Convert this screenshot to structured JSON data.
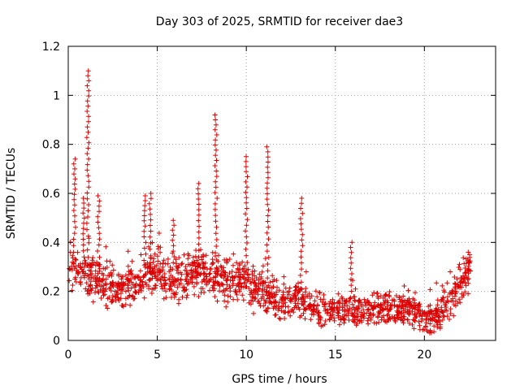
{
  "chart_data": {
    "type": "scatter",
    "title": "Day 303 of 2025, SRMTID for receiver dae3",
    "xlabel": "GPS time / hours",
    "ylabel": "SRMTID / TECUs",
    "xlim": [
      0,
      24
    ],
    "ylim": [
      0,
      1.2
    ],
    "x_ticks": [
      0,
      5,
      10,
      15,
      20
    ],
    "y_ticks": [
      0,
      0.2,
      0.4,
      0.6,
      0.8,
      1,
      1.2
    ],
    "x_tick_labels": [
      "0",
      "5",
      "10",
      "15",
      "20"
    ],
    "y_tick_labels": [
      "0",
      "0.2",
      "0.4",
      "0.6",
      "0.8",
      "1",
      "1.2"
    ],
    "grid": true,
    "marker": "plus",
    "color": "#dd0000",
    "data_end_hours": 22.6,
    "trend": [
      [
        0.0,
        0.28
      ],
      [
        0.5,
        0.3
      ],
      [
        1.0,
        0.27
      ],
      [
        1.5,
        0.25
      ],
      [
        2.0,
        0.24
      ],
      [
        2.5,
        0.21
      ],
      [
        3.0,
        0.21
      ],
      [
        3.5,
        0.21
      ],
      [
        4.0,
        0.24
      ],
      [
        4.5,
        0.28
      ],
      [
        5.0,
        0.28
      ],
      [
        5.5,
        0.25
      ],
      [
        6.0,
        0.26
      ],
      [
        6.5,
        0.24
      ],
      [
        7.0,
        0.28
      ],
      [
        7.5,
        0.27
      ],
      [
        8.0,
        0.27
      ],
      [
        8.5,
        0.25
      ],
      [
        9.0,
        0.24
      ],
      [
        9.5,
        0.24
      ],
      [
        10.0,
        0.25
      ],
      [
        10.5,
        0.21
      ],
      [
        11.0,
        0.2
      ],
      [
        11.5,
        0.16
      ],
      [
        12.0,
        0.17
      ],
      [
        12.5,
        0.17
      ],
      [
        13.0,
        0.18
      ],
      [
        13.5,
        0.14
      ],
      [
        14.0,
        0.13
      ],
      [
        14.5,
        0.12
      ],
      [
        15.0,
        0.11
      ],
      [
        15.5,
        0.12
      ],
      [
        16.0,
        0.11
      ],
      [
        16.5,
        0.12
      ],
      [
        17.0,
        0.13
      ],
      [
        17.5,
        0.13
      ],
      [
        18.0,
        0.13
      ],
      [
        18.5,
        0.13
      ],
      [
        19.0,
        0.13
      ],
      [
        19.5,
        0.11
      ],
      [
        20.0,
        0.09
      ],
      [
        20.5,
        0.08
      ],
      [
        21.0,
        0.12
      ],
      [
        21.5,
        0.18
      ],
      [
        22.0,
        0.22
      ],
      [
        22.6,
        0.3
      ]
    ],
    "spikes": [
      {
        "x": 0.35,
        "peak": 0.74
      },
      {
        "x": 0.85,
        "peak": 0.58
      },
      {
        "x": 1.1,
        "peak": 1.1
      },
      {
        "x": 1.7,
        "peak": 0.59
      },
      {
        "x": 4.3,
        "peak": 0.59
      },
      {
        "x": 4.6,
        "peak": 0.6
      },
      {
        "x": 5.9,
        "peak": 0.49
      },
      {
        "x": 7.3,
        "peak": 0.64
      },
      {
        "x": 8.3,
        "peak": 0.92
      },
      {
        "x": 10.0,
        "peak": 0.75
      },
      {
        "x": 11.2,
        "peak": 0.79
      },
      {
        "x": 13.1,
        "peak": 0.58
      },
      {
        "x": 15.9,
        "peak": 0.4
      },
      {
        "x": 22.5,
        "peak": 0.36
      }
    ]
  }
}
